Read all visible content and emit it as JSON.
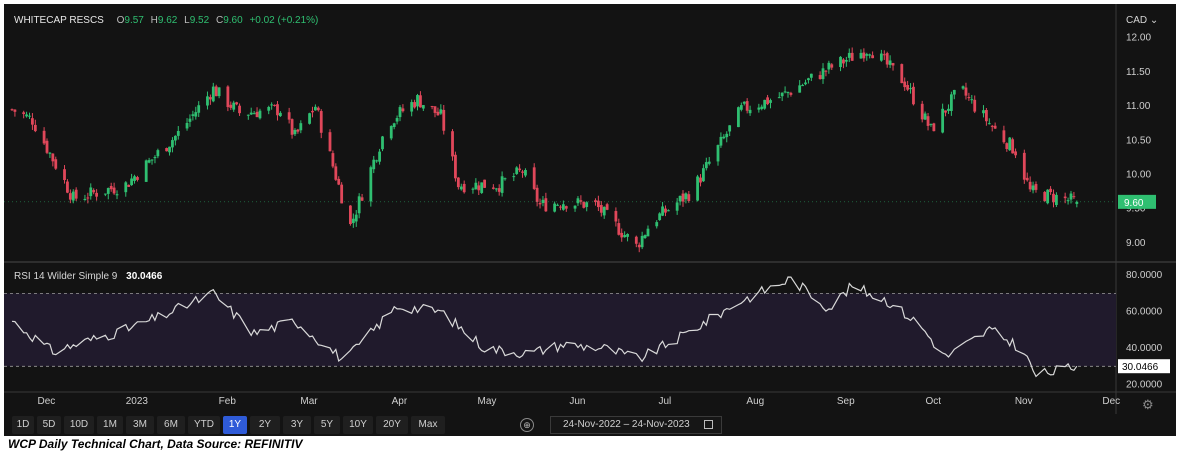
{
  "header": {
    "symbol": "WHITECAP RESCS",
    "open_label": "O",
    "open": "9.57",
    "high_label": "H",
    "high": "9.62",
    "low_label": "L",
    "low": "9.52",
    "close_label": "C",
    "close": "9.60",
    "change": "+0.02 (+0.21%)",
    "currency": "CAD"
  },
  "rsi_panel": {
    "label": "RSI 14 Wilder Simple 9",
    "value": "30.0466"
  },
  "toolbar": {
    "buttons": [
      "1D",
      "5D",
      "10D",
      "1M",
      "3M",
      "6M",
      "YTD",
      "1Y",
      "2Y",
      "3Y",
      "5Y",
      "10Y",
      "20Y",
      "Max"
    ],
    "active": "1Y",
    "date_range": "24-Nov-2022  –  24-Nov-2023"
  },
  "caption": "WCP Daily Technical Chart, Data Source: REFINITIV",
  "colors": {
    "up": "#2fbf71",
    "down": "#e0475a",
    "background": "#131313",
    "rsi_band": "#201a2c",
    "rsi_line": "#d9d9d9",
    "active_button": "#2f5bd8"
  },
  "chart_data": [
    {
      "type": "candlestick",
      "series_name": "WHITECAP RESCS",
      "x_tick_labels": [
        "Dec",
        "2023",
        "Feb",
        "Mar",
        "Apr",
        "May",
        "Jun",
        "Jul",
        "Aug",
        "Sep",
        "Oct",
        "Nov",
        "Dec"
      ],
      "y_tick_labels": [
        "12.00",
        "11.50",
        "11.00",
        "10.50",
        "10.00",
        "9.50",
        "9.00"
      ],
      "ylim": [
        8.75,
        12.2
      ],
      "last_price_label": "9.60",
      "monthly_path": [
        [
          "Nov-24",
          10.95
        ],
        [
          "Dec-01",
          10.8
        ],
        [
          "Dec-15",
          9.65
        ],
        [
          "2023-01-02",
          9.85
        ],
        [
          "Jan-20",
          10.6
        ],
        [
          "Feb-01",
          11.25
        ],
        [
          "Feb-10",
          10.9
        ],
        [
          "Feb-24",
          10.95
        ],
        [
          "Mar-01",
          10.55
        ],
        [
          "Mar-08",
          11.0
        ],
        [
          "Mar-20",
          9.25
        ],
        [
          "Mar-31",
          10.55
        ],
        [
          "Apr-03",
          10.8
        ],
        [
          "Apr-12",
          11.1
        ],
        [
          "Apr-20",
          10.85
        ],
        [
          "Apr-26",
          9.85
        ],
        [
          "May-10",
          9.85
        ],
        [
          "May-18",
          10.05
        ],
        [
          "May-24",
          9.55
        ],
        [
          "Jun-01",
          9.6
        ],
        [
          "Jun-12",
          9.55
        ],
        [
          "Jun-26",
          8.95
        ],
        [
          "Jul-01",
          9.3
        ],
        [
          "Jul-15",
          9.75
        ],
        [
          "Aug-01",
          10.95
        ],
        [
          "Aug-15",
          11.15
        ],
        [
          "Aug-31",
          11.55
        ],
        [
          "Sep-14",
          11.85
        ],
        [
          "Sep-26",
          11.35
        ],
        [
          "Oct-05",
          10.65
        ],
        [
          "Oct-15",
          11.25
        ],
        [
          "Oct-27",
          10.65
        ],
        [
          "Nov-03",
          10.35
        ],
        [
          "Nov-08",
          9.75
        ],
        [
          "Nov-24",
          9.6
        ]
      ],
      "last": {
        "open": 9.57,
        "high": 9.62,
        "low": 9.52,
        "close": 9.6
      }
    },
    {
      "type": "line",
      "series_name": "RSI 14 Wilder Simple 9",
      "y_tick_labels": [
        "80.0000",
        "60.0000",
        "40.0000",
        "20.0000"
      ],
      "ylim": [
        17,
        85
      ],
      "band": [
        30,
        70
      ],
      "last_value_label": "30.0466",
      "monthly_path": [
        [
          "Nov-24",
          55
        ],
        [
          "Dec-08",
          38
        ],
        [
          "Dec-20",
          44
        ],
        [
          "2023-01-02",
          50
        ],
        [
          "Jan-15",
          58
        ],
        [
          "Feb-01",
          70
        ],
        [
          "Feb-15",
          48
        ],
        [
          "Mar-01",
          55
        ],
        [
          "Mar-18",
          33
        ],
        [
          "Mar-31",
          55
        ],
        [
          "Apr-05",
          63
        ],
        [
          "Apr-20",
          60
        ],
        [
          "May-05",
          40
        ],
        [
          "May-20",
          37
        ],
        [
          "Jun-01",
          42
        ],
        [
          "Jun-15",
          40
        ],
        [
          "Jun-27",
          34
        ],
        [
          "Jul-10",
          45
        ],
        [
          "Aug-01",
          66
        ],
        [
          "Aug-18",
          78
        ],
        [
          "Aug-31",
          62
        ],
        [
          "Sep-08",
          74
        ],
        [
          "Sep-20",
          66
        ],
        [
          "Oct-01",
          53
        ],
        [
          "Oct-10",
          35
        ],
        [
          "Oct-25",
          50
        ],
        [
          "Nov-05",
          40
        ],
        [
          "Nov-10",
          25
        ],
        [
          "Nov-24",
          30
        ]
      ]
    }
  ]
}
